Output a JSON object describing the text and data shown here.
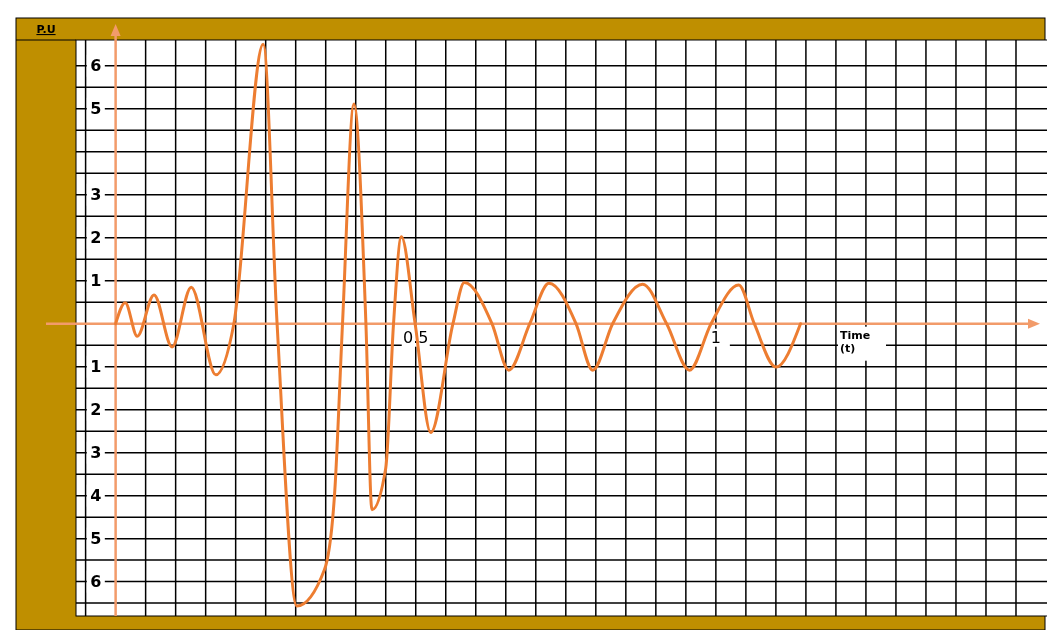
{
  "chart_data": {
    "type": "line",
    "ylabel": "P.U",
    "xlabel": "Time (t)",
    "xlim": [
      -0.066,
      1.54
    ],
    "ylim": [
      -6.8,
      6.6
    ],
    "xticks": [
      {
        "value": -0.05,
        "label": null
      },
      {
        "value": 0.05,
        "label": null
      },
      {
        "value": 0.1,
        "label": null
      },
      {
        "value": 0.15,
        "label": null
      },
      {
        "value": 0.2,
        "label": null
      },
      {
        "value": 0.25,
        "label": null
      },
      {
        "value": 0.3,
        "label": null
      },
      {
        "value": 0.35,
        "label": null
      },
      {
        "value": 0.4,
        "label": null
      },
      {
        "value": 0.45,
        "label": null
      },
      {
        "value": 0.5,
        "label": "0.5"
      },
      {
        "value": 0.55,
        "label": null
      },
      {
        "value": 0.6,
        "label": null
      },
      {
        "value": 0.65,
        "label": null
      },
      {
        "value": 0.7,
        "label": null
      },
      {
        "value": 0.75,
        "label": null
      },
      {
        "value": 0.8,
        "label": null
      },
      {
        "value": 0.85,
        "label": null
      },
      {
        "value": 0.9,
        "label": null
      },
      {
        "value": 0.95,
        "label": null
      },
      {
        "value": 1,
        "label": "1"
      },
      {
        "value": 1.05,
        "label": null
      },
      {
        "value": 1.1,
        "label": null
      },
      {
        "value": 1.15,
        "label": null
      },
      {
        "value": 1.2,
        "label": null
      },
      {
        "value": 1.25,
        "label": null
      },
      {
        "value": 1.3,
        "label": null
      },
      {
        "value": 1.35,
        "label": null
      },
      {
        "value": 1.4,
        "label": null
      },
      {
        "value": 1.45,
        "label": null
      },
      {
        "value": 1.5,
        "label": null
      }
    ],
    "yticks": [
      {
        "value": -6.5,
        "label": null
      },
      {
        "value": -6,
        "label": "6"
      },
      {
        "value": -5.5,
        "label": null
      },
      {
        "value": -5,
        "label": "5"
      },
      {
        "value": -4.5,
        "label": null
      },
      {
        "value": -4,
        "label": "4"
      },
      {
        "value": -3.5,
        "label": null
      },
      {
        "value": -3,
        "label": "3"
      },
      {
        "value": -2.5,
        "label": null
      },
      {
        "value": -2,
        "label": "2"
      },
      {
        "value": -1.5,
        "label": null
      },
      {
        "value": -1,
        "label": "1"
      },
      {
        "value": -0.5,
        "label": null
      },
      {
        "value": 0.5,
        "label": null
      },
      {
        "value": 1,
        "label": "1"
      },
      {
        "value": 1.5,
        "label": null
      },
      {
        "value": 2,
        "label": "2"
      },
      {
        "value": 2.5,
        "label": null
      },
      {
        "value": 3,
        "label": "3"
      },
      {
        "value": 3.5,
        "label": null
      },
      {
        "value": 4,
        "label": null
      },
      {
        "value": 4.5,
        "label": null
      },
      {
        "value": 5,
        "label": "5"
      },
      {
        "value": 5.5,
        "label": null
      },
      {
        "value": 6,
        "label": "6"
      }
    ],
    "grid": true,
    "marker": "none",
    "line_style": "solid",
    "series": [
      {
        "color": "#ed7d31",
        "x": [
          0,
          0.016,
          0.036,
          0.064,
          0.094,
          0.126,
          0.167,
          0.197,
          0.246,
          0.269,
          0.302,
          0.348,
          0.365,
          0.378,
          0.397,
          0.417,
          0.427,
          0.45,
          0.463,
          0.476,
          0.499,
          0.525,
          0.562,
          0.581,
          0.627,
          0.655,
          0.69,
          0.722,
          0.767,
          0.795,
          0.828,
          0.878,
          0.918,
          0.956,
          0.992,
          1.038,
          1.064,
          1.1,
          1.141
        ],
        "values": [
          0,
          0.49,
          -0.29,
          0.67,
          -0.54,
          0.85,
          -1.19,
          0,
          6.5,
          0,
          -6.57,
          -5.72,
          -3.92,
          0,
          5.11,
          0,
          -4.33,
          -3.36,
          0,
          2.02,
          0,
          -2.53,
          0,
          0.96,
          0,
          -1.08,
          0,
          0.94,
          0,
          -1.08,
          0,
          0.92,
          0,
          -1.08,
          0,
          0.9,
          0,
          -1.01,
          0
        ]
      }
    ]
  }
}
